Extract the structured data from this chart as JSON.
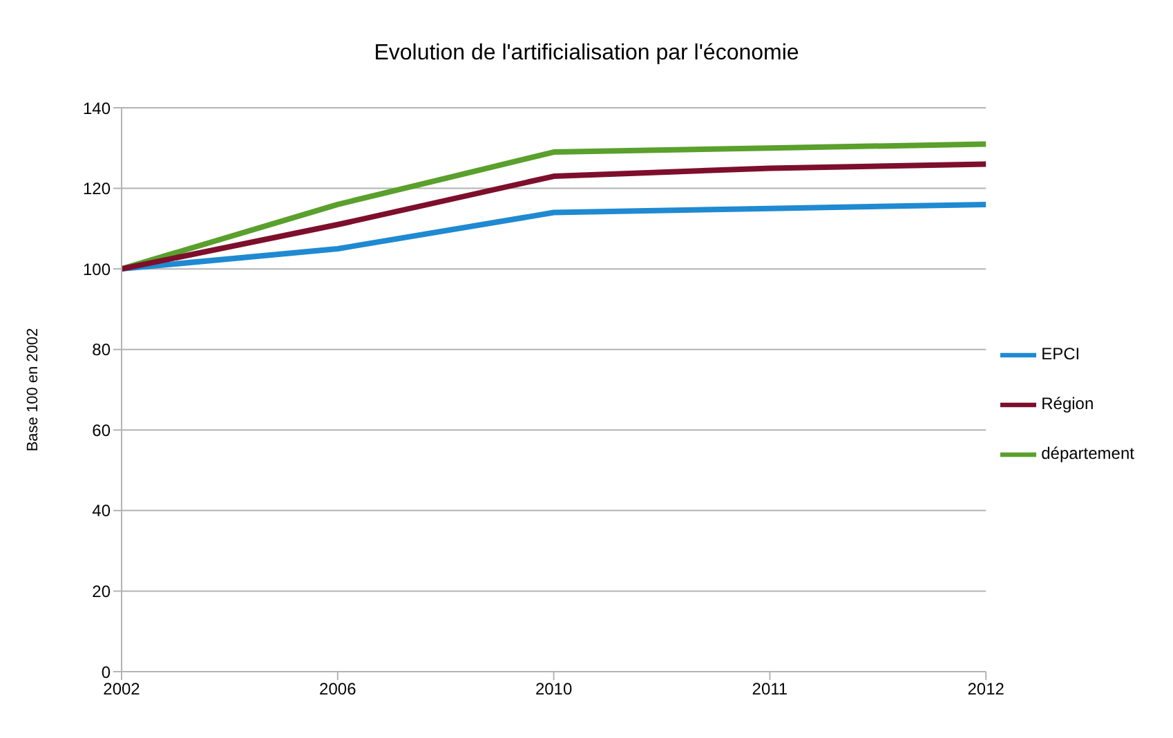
{
  "chart_data": {
    "type": "line",
    "title": "Evolution de l'artificialisation par l'économie",
    "ylabel": "Base 100 en 2002",
    "categories": [
      "2002",
      "2006",
      "2010",
      "2011",
      "2012"
    ],
    "series": [
      {
        "name": "EPCI",
        "color": "#1f8ad1",
        "values": [
          100,
          105,
          114,
          115,
          116
        ]
      },
      {
        "name": "département",
        "color": "#5aa02c",
        "values": [
          100,
          116,
          129,
          130,
          131
        ]
      },
      {
        "name": "Région",
        "color": "#7d0f2c",
        "values": [
          100,
          111,
          123,
          125,
          126
        ]
      }
    ],
    "ylim": [
      0,
      140
    ],
    "yticks": [
      0,
      20,
      40,
      60,
      80,
      100,
      120,
      140
    ],
    "grid": "y",
    "legend": "right",
    "marker": "none",
    "line_style": "solid"
  }
}
